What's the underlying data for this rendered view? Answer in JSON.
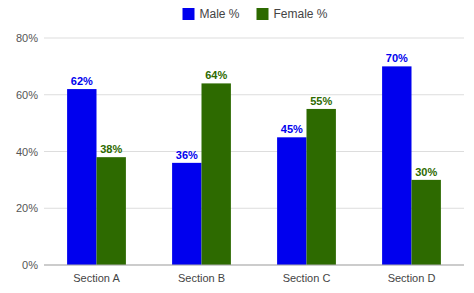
{
  "chart_data": {
    "type": "bar",
    "categories": [
      "Section A",
      "Section B",
      "Section C",
      "Section D"
    ],
    "series": [
      {
        "name": "Male %",
        "color": "#0000ee",
        "values": [
          62,
          36,
          45,
          70
        ],
        "value_labels": [
          "62%",
          "36%",
          "45%",
          "70%"
        ]
      },
      {
        "name": "Female %",
        "color": "#2d6a00",
        "values": [
          38,
          64,
          55,
          30
        ],
        "value_labels": [
          "38%",
          "64%",
          "55%",
          "30%"
        ]
      }
    ],
    "ylim": [
      0,
      80
    ],
    "yticks": [
      {
        "value": 0,
        "label": "0%"
      },
      {
        "value": 20,
        "label": "20%"
      },
      {
        "value": 40,
        "label": "40%"
      },
      {
        "value": 60,
        "label": "60%"
      },
      {
        "value": 80,
        "label": "80%"
      }
    ],
    "grid": true,
    "legend": "top",
    "data_labels": true
  }
}
